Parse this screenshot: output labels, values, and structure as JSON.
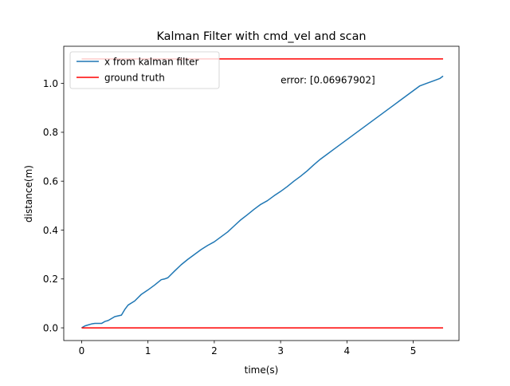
{
  "chart_data": {
    "type": "line",
    "title": "Kalman Filter with cmd_vel and scan",
    "xlabel": "time(s)",
    "ylabel": "distance(m)",
    "xlim": [
      -0.27,
      5.69
    ],
    "ylim": [
      -0.052,
      1.152
    ],
    "xticks": [
      0,
      1,
      2,
      3,
      4,
      5
    ],
    "yticks": [
      0.0,
      0.2,
      0.4,
      0.6,
      0.8,
      1.0
    ],
    "ytick_labels": [
      "0.0",
      "0.2",
      "0.4",
      "0.6",
      "0.8",
      "1.0"
    ],
    "grid": false,
    "legend": "upper left",
    "annotation": {
      "text": "error: [0.06967902]",
      "x": 3.0,
      "y": 1.0
    },
    "series": [
      {
        "name": "x from kalman filter",
        "color": "#1f77b4",
        "x": [
          0.0,
          0.05,
          0.1,
          0.15,
          0.2,
          0.3,
          0.35,
          0.4,
          0.5,
          0.6,
          0.65,
          0.7,
          0.8,
          0.9,
          1.0,
          1.1,
          1.2,
          1.25,
          1.3,
          1.4,
          1.5,
          1.6,
          1.7,
          1.8,
          1.9,
          2.0,
          2.1,
          2.2,
          2.3,
          2.4,
          2.5,
          2.6,
          2.7,
          2.8,
          2.9,
          3.0,
          3.1,
          3.2,
          3.3,
          3.4,
          3.5,
          3.6,
          3.7,
          3.8,
          3.9,
          4.0,
          4.1,
          4.2,
          4.3,
          4.4,
          4.5,
          4.6,
          4.7,
          4.8,
          4.9,
          5.0,
          5.1,
          5.2,
          5.3,
          5.4,
          5.45
        ],
        "y": [
          0.0,
          0.008,
          0.012,
          0.016,
          0.018,
          0.018,
          0.026,
          0.03,
          0.046,
          0.052,
          0.075,
          0.093,
          0.11,
          0.137,
          0.155,
          0.175,
          0.197,
          0.2,
          0.205,
          0.232,
          0.258,
          0.28,
          0.3,
          0.32,
          0.337,
          0.352,
          0.372,
          0.392,
          0.417,
          0.442,
          0.463,
          0.485,
          0.505,
          0.52,
          0.54,
          0.558,
          0.578,
          0.6,
          0.62,
          0.642,
          0.667,
          0.69,
          0.71,
          0.73,
          0.75,
          0.77,
          0.79,
          0.81,
          0.83,
          0.85,
          0.87,
          0.89,
          0.91,
          0.93,
          0.95,
          0.97,
          0.99,
          1.0,
          1.01,
          1.02,
          1.03
        ]
      },
      {
        "name": "ground truth",
        "color": "#ff0000",
        "segments": [
          {
            "x": [
              0.0,
              5.45
            ],
            "y": [
              0.0,
              0.0
            ]
          },
          {
            "x": [
              0.0,
              5.45
            ],
            "y": [
              1.1,
              1.1
            ]
          }
        ]
      }
    ]
  }
}
